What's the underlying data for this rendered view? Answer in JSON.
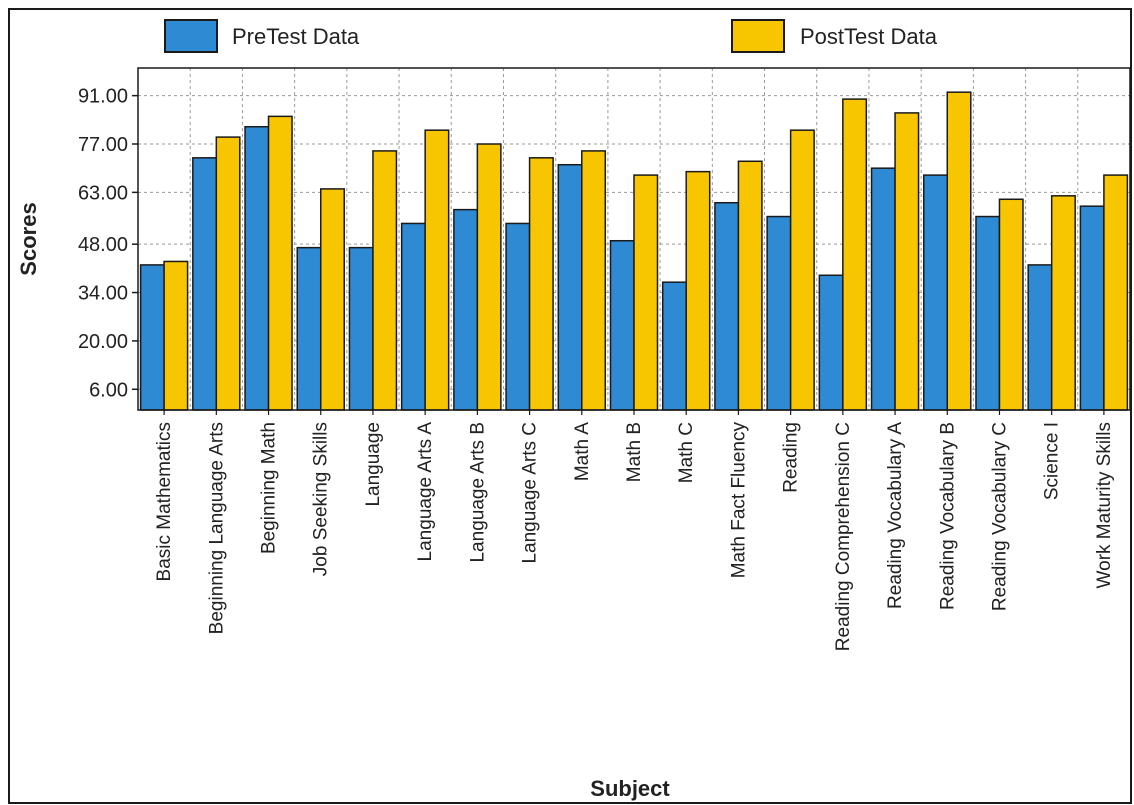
{
  "chart_data": {
    "type": "bar",
    "title": "",
    "xlabel": "Subject",
    "ylabel": "Scores",
    "ylim": [
      0,
      99
    ],
    "yticks": [
      "6.00",
      "20.00",
      "34.00",
      "48.00",
      "63.00",
      "77.00",
      "91.00"
    ],
    "ytick_values": [
      6,
      20,
      34,
      48,
      63,
      77,
      91
    ],
    "grid": true,
    "legend_position": "top",
    "categories": [
      "Basic Mathematics",
      "Beginning Language Arts",
      "Beginning Math",
      "Job Seeking Skills",
      "Language",
      "Language Arts A",
      "Language Arts B",
      "Language Arts C",
      "Math A",
      "Math B",
      "Math C",
      "Math Fact Fluency",
      "Reading",
      "Reading Comprehension C",
      "Reading Vocabulary A",
      "Reading Vocabulary B",
      "Reading Vocabulary C",
      "Science I",
      "Work Maturity Skills"
    ],
    "series": [
      {
        "name": "PreTest Data",
        "color": "#2f8ad4",
        "values": [
          42,
          73,
          82,
          47,
          47,
          54,
          58,
          54,
          71,
          49,
          37,
          60,
          56,
          39,
          70,
          68,
          56,
          42,
          59
        ]
      },
      {
        "name": "PostTest Data",
        "color": "#f7c600",
        "values": [
          43,
          79,
          85,
          64,
          75,
          81,
          77,
          73,
          75,
          68,
          69,
          72,
          81,
          90,
          86,
          92,
          61,
          62,
          68
        ]
      }
    ]
  }
}
